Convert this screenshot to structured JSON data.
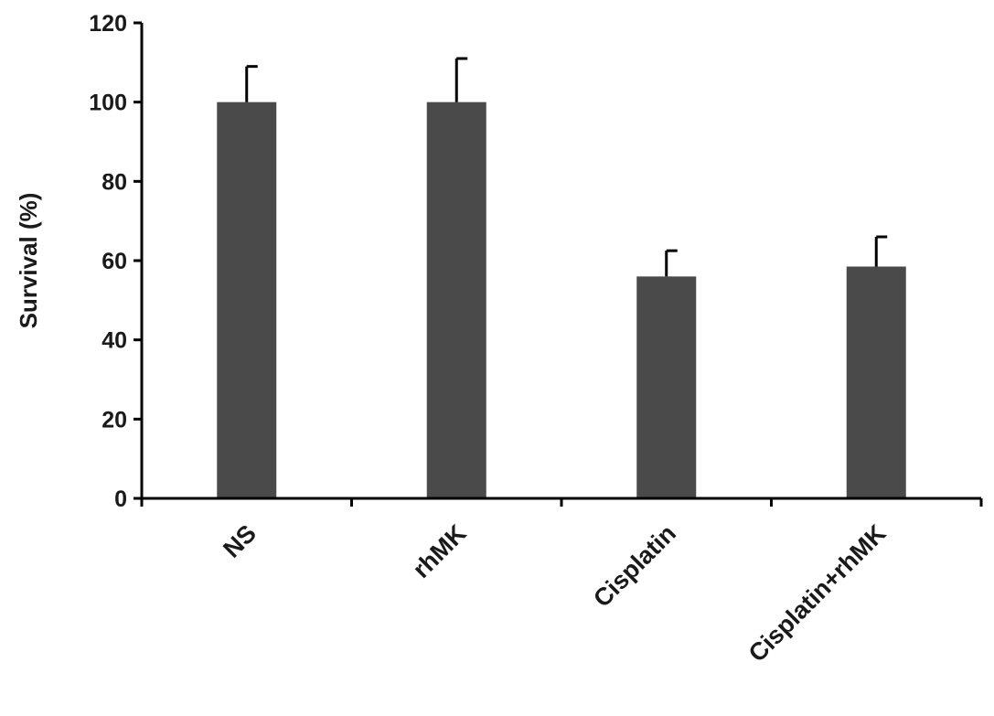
{
  "chart_data": {
    "type": "bar",
    "title": "",
    "xlabel": "",
    "ylabel": "Survival (%)",
    "ylim": [
      0,
      120
    ],
    "yticks": [
      0,
      20,
      40,
      60,
      80,
      100,
      120
    ],
    "grid": false,
    "legend": "none",
    "bar_color": "#4a4a4a",
    "categories": [
      "NS",
      "rhMK",
      "Cisplatin",
      "Cisplatin+rhMK"
    ],
    "values": [
      100,
      100,
      56,
      58.5
    ],
    "error_upper": [
      9,
      11,
      6.5,
      7.5
    ]
  }
}
